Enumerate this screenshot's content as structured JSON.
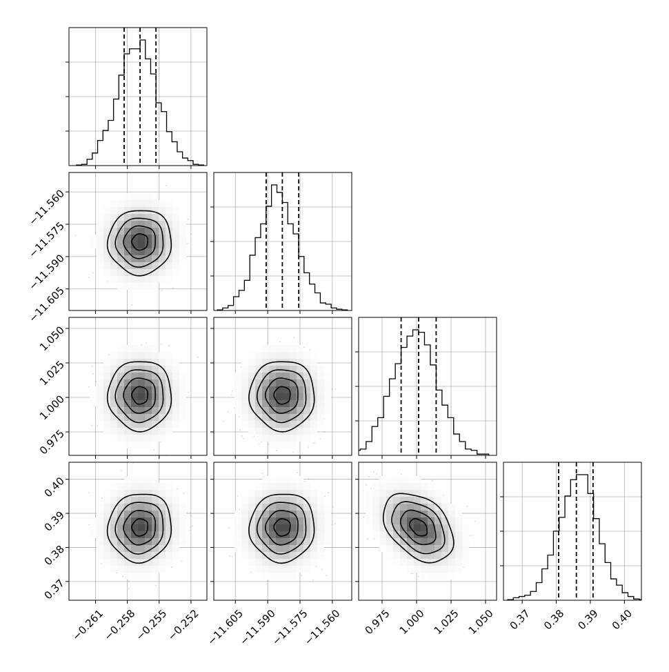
{
  "chart_data": {
    "type": "corner",
    "grid": true,
    "colors": {
      "line": "#000000",
      "grid": "#b0b0b0",
      "points": "#888888"
    },
    "parameters": [
      {
        "range": [
          -0.2635,
          -0.2505
        ],
        "ticks": [
          "-0.261",
          "-0.258",
          "-0.255",
          "-0.252"
        ],
        "tick_values": [
          -0.261,
          -0.258,
          -0.255,
          -0.252
        ],
        "quantiles": [
          -0.2583,
          -0.2568,
          -0.2553
        ]
      },
      {
        "range": [
          -11.615,
          -11.551
        ],
        "ticks": [
          "-11.605",
          "-11.590",
          "-11.575",
          "-11.560"
        ],
        "tick_values": [
          -11.605,
          -11.59,
          -11.575,
          -11.56
        ],
        "quantiles": [
          -11.5907,
          -11.5832,
          -11.5756
        ]
      },
      {
        "range": [
          0.958,
          1.058
        ],
        "ticks": [
          "0.975",
          "1.000",
          "1.025",
          "1.050"
        ],
        "tick_values": [
          0.975,
          1.0,
          1.025,
          1.05
        ],
        "quantiles": [
          0.9888,
          1.0015,
          1.0142
        ]
      },
      {
        "range": [
          0.3645,
          0.405
        ],
        "ticks": [
          "0.37",
          "0.38",
          "0.39",
          "0.40"
        ],
        "tick_values": [
          0.37,
          0.38,
          0.39,
          0.4
        ],
        "quantiles": [
          0.3807,
          0.3859,
          0.3908
        ]
      }
    ],
    "histograms": [
      [
        0.005,
        0.01,
        0.05,
        0.1,
        0.2,
        0.28,
        0.36,
        0.53,
        0.72,
        0.89,
        0.93,
        0.93,
        1.0,
        0.85,
        0.73,
        0.5,
        0.43,
        0.27,
        0.19,
        0.11,
        0.06,
        0.04,
        0.01,
        0.005
      ],
      [
        0.005,
        0.02,
        0.04,
        0.11,
        0.16,
        0.24,
        0.44,
        0.58,
        0.69,
        0.83,
        1.0,
        0.94,
        0.86,
        0.69,
        0.61,
        0.43,
        0.3,
        0.21,
        0.14,
        0.06,
        0.05,
        0.02,
        0.01,
        0.005
      ],
      [
        0.02,
        0.04,
        0.05,
        0.11,
        0.23,
        0.3,
        0.47,
        0.61,
        0.73,
        0.86,
        0.95,
        1.0,
        0.98,
        0.88,
        0.72,
        0.52,
        0.4,
        0.3,
        0.17,
        0.11,
        0.05,
        0.04,
        0.01,
        0.01
      ],
      [
        0.005,
        0.02,
        0.03,
        0.04,
        0.07,
        0.14,
        0.25,
        0.36,
        0.55,
        0.66,
        0.83,
        0.96,
        1.0,
        1.0,
        0.85,
        0.65,
        0.45,
        0.3,
        0.17,
        0.12,
        0.06,
        0.03,
        0.01,
        0.005
      ]
    ],
    "pair_correlations": {
      "1-0": 0.02,
      "2-0": 0.0,
      "2-1": 0.0,
      "3-0": 0.05,
      "3-1": 0.03,
      "3-2": -0.38
    }
  }
}
